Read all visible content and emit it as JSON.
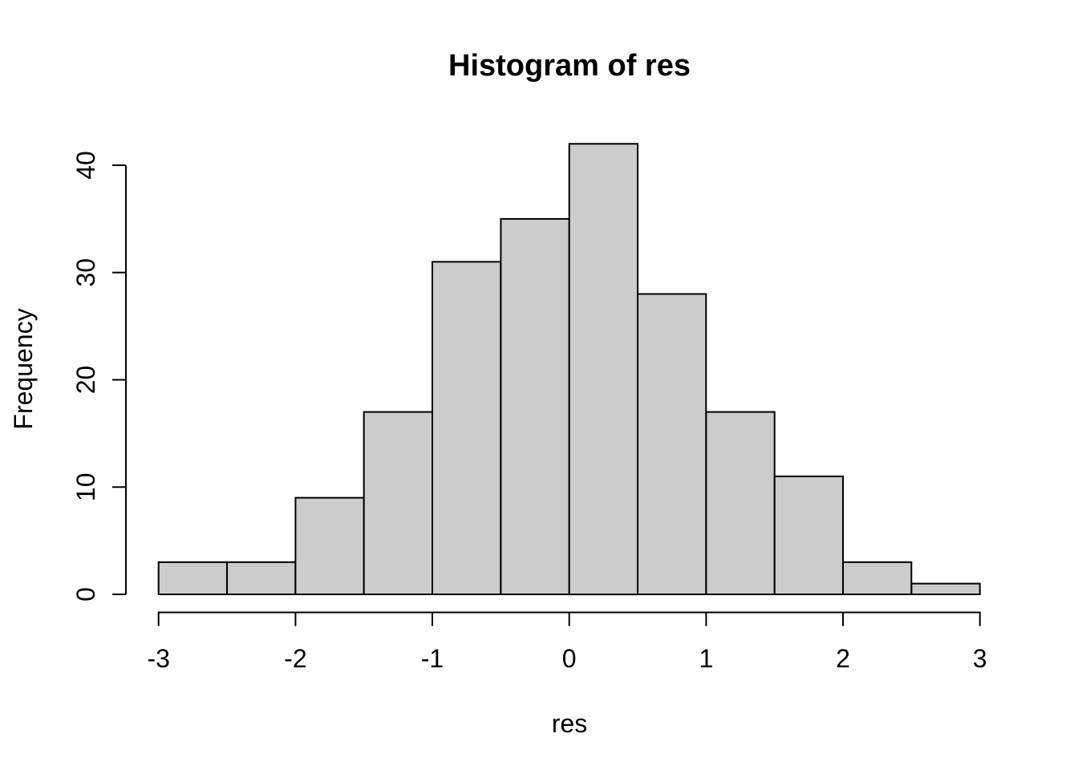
{
  "chart_data": {
    "type": "bar",
    "subtype": "histogram",
    "title": "Histogram of res",
    "xlabel": "res",
    "ylabel": "Frequency",
    "bin_width": 0.5,
    "bin_edges": [
      -3,
      -2.5,
      -2,
      -1.5,
      -1,
      -0.5,
      0,
      0.5,
      1,
      1.5,
      2,
      2.5,
      3
    ],
    "counts": [
      3,
      3,
      9,
      17,
      31,
      35,
      42,
      28,
      17,
      11,
      3,
      1
    ],
    "x_ticks": [
      -3,
      -2,
      -1,
      0,
      1,
      2,
      3
    ],
    "y_ticks": [
      0,
      10,
      20,
      30,
      40
    ],
    "xlim": [
      -3,
      3
    ],
    "ylim": [
      0,
      42
    ],
    "grid": false,
    "legend": "none",
    "colors": {
      "bar_fill": "#cccccc",
      "bar_stroke": "#000000",
      "axis": "#000000",
      "text": "#000000",
      "background": "#ffffff"
    }
  }
}
